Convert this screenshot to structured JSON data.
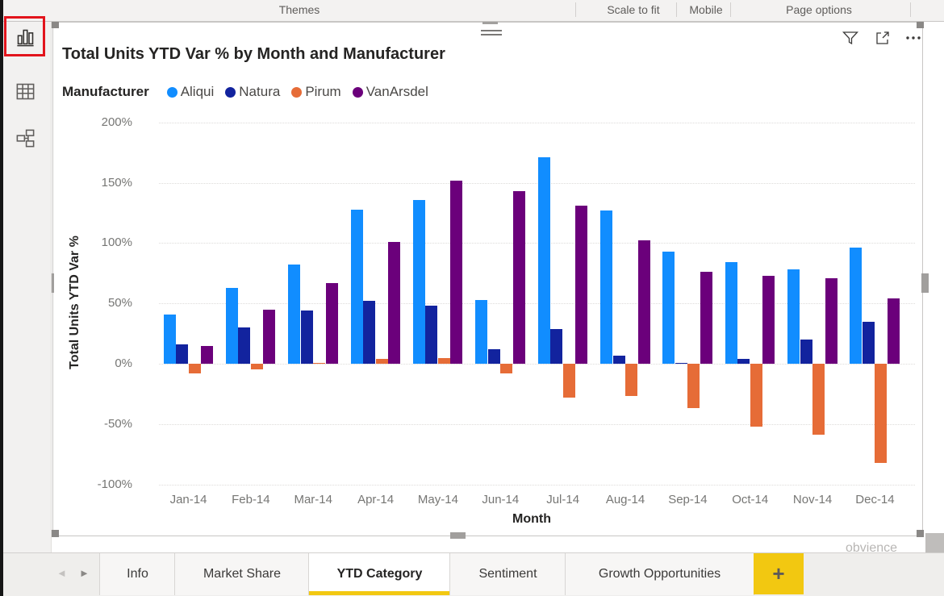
{
  "ribbon": {
    "groups": [
      {
        "label": "Themes"
      },
      {
        "label": "Scale to fit"
      },
      {
        "label": "Mobile"
      },
      {
        "label": "Page options"
      }
    ]
  },
  "sidebar": {
    "views": [
      {
        "name": "report-view",
        "active": true,
        "highlighted": true
      },
      {
        "name": "data-view",
        "active": false,
        "highlighted": false
      },
      {
        "name": "model-view",
        "active": false,
        "highlighted": false
      }
    ],
    "highlight_color": "#E2141C"
  },
  "visual": {
    "title": "Total Units YTD Var % by Month and Manufacturer",
    "selected": true,
    "legend_label": "Manufacturer",
    "header_icons": [
      "filter",
      "focus-mode",
      "more-options"
    ]
  },
  "chart_data": {
    "type": "bar",
    "title": "Total Units YTD Var % by Month and Manufacturer",
    "xlabel": "Month",
    "ylabel": "Total Units YTD Var %",
    "categories": [
      "Jan-14",
      "Feb-14",
      "Mar-14",
      "Apr-14",
      "May-14",
      "Jun-14",
      "Jul-14",
      "Aug-14",
      "Sep-14",
      "Oct-14",
      "Nov-14",
      "Dec-14"
    ],
    "series": [
      {
        "name": "Aliqui",
        "color": "#118DFF",
        "values": [
          41,
          63,
          82,
          128,
          136,
          53,
          171,
          127,
          93,
          84,
          78,
          96
        ]
      },
      {
        "name": "Natura",
        "color": "#12239E",
        "values": [
          16,
          30,
          44,
          52,
          48,
          12,
          29,
          7,
          1,
          4,
          20,
          35
        ]
      },
      {
        "name": "Pirum",
        "color": "#E66C37",
        "values": [
          -8,
          -5,
          1,
          4,
          5,
          -8,
          -28,
          -27,
          -37,
          -52,
          -59,
          -82
        ]
      },
      {
        "name": "VanArsdel",
        "color": "#6B007B",
        "values": [
          15,
          45,
          67,
          101,
          152,
          143,
          131,
          102,
          76,
          73,
          71,
          54
        ]
      }
    ],
    "ylim": [
      -100,
      200
    ],
    "yticks": [
      200,
      150,
      100,
      50,
      0,
      -50,
      -100
    ],
    "ytick_suffix": "%",
    "grid": "dotted-horizontal",
    "legend_position": "top"
  },
  "watermark": "obvience",
  "pages": {
    "tabs": [
      "Info",
      "Market Share",
      "YTD Category",
      "Sentiment",
      "Growth Opportunities"
    ],
    "active_tab": "YTD Category",
    "active_index": 2,
    "add_label": "+",
    "accent_color": "#F2C811"
  }
}
